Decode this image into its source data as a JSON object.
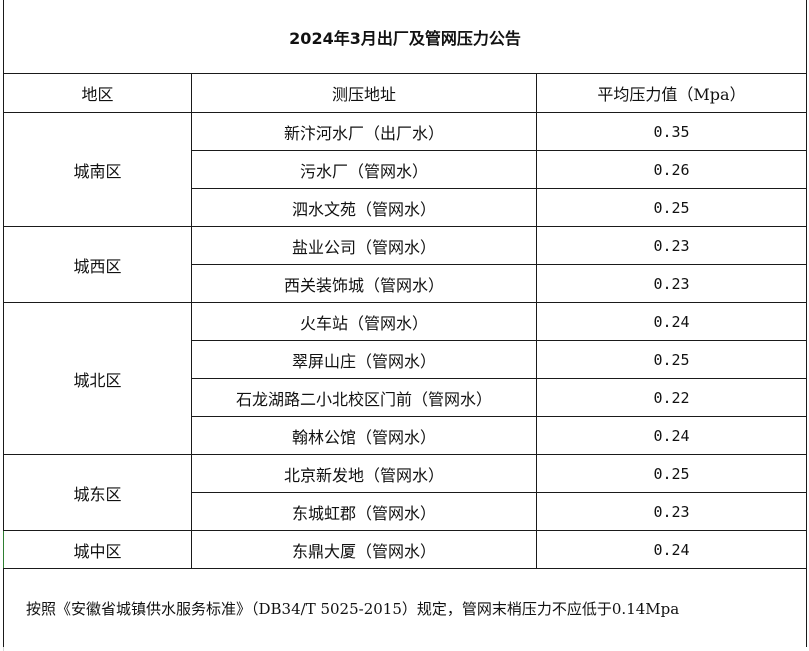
{
  "title": "2024年3月出厂及管网压力公告",
  "headers": [
    "地区",
    "测压地址",
    "平均压力值（Mpa）"
  ],
  "regions": [
    {
      "name": "城南区",
      "rows": [
        {
          "address": "新汴河水厂（出厂水）",
          "value": "0.35"
        },
        {
          "address": "污水厂（管网水）",
          "value": "0.26"
        },
        {
          "address": "泗水文苑（管网水）",
          "value": "0.25"
        }
      ]
    },
    {
      "name": "城西区",
      "rows": [
        {
          "address": "盐业公司（管网水）",
          "value": "0.23"
        },
        {
          "address": "西关装饰城（管网水）",
          "value": "0.23"
        }
      ]
    },
    {
      "name": "城北区",
      "rows": [
        {
          "address": "火车站（管网水）",
          "value": "0.24"
        },
        {
          "address": "翠屏山庄（管网水）",
          "value": "0.25"
        },
        {
          "address": "石龙湖路二小北校区门前（管网水）",
          "value": "0.22"
        },
        {
          "address": "翰林公馆（管网水）",
          "value": "0.24"
        }
      ]
    },
    {
      "name": "城东区",
      "rows": [
        {
          "address": "北京新发地（管网水）",
          "value": "0.25"
        },
        {
          "address": "东城虹郡（管网水）",
          "value": "0.23"
        }
      ]
    },
    {
      "name": "城中区",
      "rows": [
        {
          "address": "东鼎大厦（管网水）",
          "value": "0.24"
        }
      ]
    }
  ],
  "footnote": "按照《安徽省城镇供水服务标准》（DB34/T  5025-2015）规定，管网末梢压力不应低于0.14Mpa"
}
